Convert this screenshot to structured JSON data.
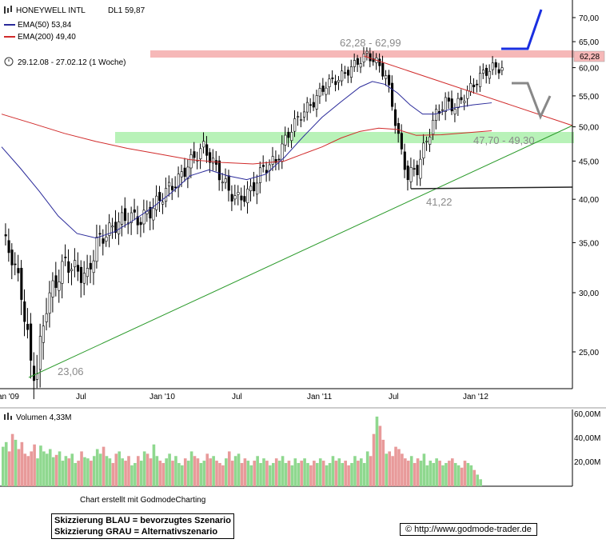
{
  "header": {
    "title": "HONEYWELL INTL",
    "last": "DL1 59,87",
    "ema50": "EMA(50) 53,84",
    "ema200": "EMA(200) 49,40",
    "range": "29.12.08 - 27.02.12 (1 Woche)"
  },
  "annotations": {
    "resistance": "62,28 - 62,99",
    "support": "47,70 - 49,30",
    "low2011": "41,22",
    "low2009": "23,06",
    "price_tag": "62,28"
  },
  "volume": {
    "label": "Volumen 4,33M",
    "ticks": [
      "60,00M",
      "40,00M",
      "20,00M"
    ]
  },
  "footer": {
    "credit": "Chart erstellt mit GodmodeCharting",
    "blue": "Skizzierung BLAU = bevorzugtes Szenario",
    "grey": "Skizzierung GRAU = Alternativszenario",
    "url": "http://www.godmode-trader.de"
  },
  "colors": {
    "up": "#8fd88f",
    "down": "#e89a9a",
    "ema50": "#2a2a9a",
    "ema200": "#d12b2b",
    "zone_red": "#f6b8b8",
    "zone_green": "#b8f2b8",
    "trend_green": "#2a9a2a",
    "blue_scenario": "#1a2fe0",
    "grey_scenario": "#888888"
  },
  "chart_data": {
    "type": "candlestick",
    "title": "HONEYWELL INTL",
    "period": "weekly",
    "x_ticks": [
      "Jan '09",
      "Jul",
      "Jan '10",
      "Jul",
      "Jan '11",
      "Jul",
      "Jan '12"
    ],
    "y_ticks": [
      25,
      30,
      35,
      40,
      45,
      50,
      55,
      60,
      65,
      70
    ],
    "y_tick_labels": [
      "25,00",
      "30,00",
      "35,00",
      "40,00",
      "45,00",
      "50,00",
      "55,00",
      "60,00",
      "65,00",
      "70,00"
    ],
    "ylim": [
      21.5,
      74
    ],
    "close_path": [
      [
        0,
        35.5
      ],
      [
        3,
        33.5
      ],
      [
        6,
        30
      ],
      [
        9,
        24
      ],
      [
        11,
        23.5
      ],
      [
        14,
        29
      ],
      [
        17,
        31
      ],
      [
        20,
        33
      ],
      [
        24,
        32
      ],
      [
        27,
        31.5
      ],
      [
        30,
        35
      ],
      [
        33,
        36
      ],
      [
        36,
        37
      ],
      [
        40,
        38
      ],
      [
        44,
        37.5
      ],
      [
        48,
        39
      ],
      [
        52,
        41
      ],
      [
        56,
        42.5
      ],
      [
        60,
        45
      ],
      [
        64,
        47
      ],
      [
        68,
        44
      ],
      [
        72,
        41
      ],
      [
        75,
        40
      ],
      [
        79,
        41
      ],
      [
        83,
        44
      ],
      [
        87,
        45
      ],
      [
        91,
        49
      ],
      [
        95,
        52
      ],
      [
        99,
        54
      ],
      [
        103,
        57
      ],
      [
        107,
        58
      ],
      [
        111,
        60
      ],
      [
        114,
        61.5
      ],
      [
        116,
        62.5
      ],
      [
        119,
        61
      ],
      [
        122,
        58.5
      ],
      [
        125,
        51
      ],
      [
        127,
        46
      ],
      [
        129,
        43
      ],
      [
        132,
        44
      ],
      [
        135,
        48
      ],
      [
        138,
        52
      ],
      [
        141,
        54
      ],
      [
        144,
        53
      ],
      [
        147,
        55
      ],
      [
        150,
        57
      ],
      [
        153,
        59
      ],
      [
        156,
        60
      ],
      [
        159,
        59.87
      ]
    ],
    "volume_m": [
      34,
      38,
      30,
      45,
      40,
      32,
      38,
      28,
      26,
      30,
      36,
      24,
      35,
      30,
      28,
      32,
      25,
      27,
      30,
      22,
      26,
      24,
      28,
      20,
      22,
      30,
      25,
      24,
      22,
      26,
      32,
      28,
      34,
      26,
      24,
      20,
      28,
      30,
      24,
      22,
      26,
      18,
      20,
      26,
      22,
      30,
      28,
      24,
      36,
      26,
      22,
      20,
      24,
      28,
      22,
      26,
      20,
      18,
      24,
      22,
      30,
      26,
      24,
      20,
      22,
      28,
      24,
      26,
      22,
      20,
      18,
      24,
      30,
      22,
      26,
      28,
      20,
      24,
      22,
      18,
      22,
      26,
      20,
      24,
      22,
      18,
      20,
      24,
      22,
      26,
      20,
      22,
      18,
      24,
      20,
      22,
      24,
      20,
      18,
      22,
      20,
      24,
      22,
      18,
      20,
      26,
      22,
      24,
      20,
      22,
      18,
      20,
      26,
      22,
      24,
      20,
      30,
      26,
      45,
      60,
      52,
      40,
      28,
      30,
      26,
      34,
      32,
      28,
      24,
      22,
      26,
      20,
      24,
      22,
      28,
      18,
      22,
      20,
      24,
      22,
      18,
      20,
      22,
      24,
      20,
      18,
      16,
      22,
      20,
      18,
      14,
      10,
      6
    ],
    "ema50": [
      [
        0,
        47
      ],
      [
        6,
        44
      ],
      [
        12,
        41
      ],
      [
        18,
        38
      ],
      [
        24,
        36
      ],
      [
        30,
        35.5
      ],
      [
        36,
        36.2
      ],
      [
        42,
        37.5
      ],
      [
        48,
        39
      ],
      [
        54,
        40.8
      ],
      [
        60,
        43
      ],
      [
        66,
        43.8
      ],
      [
        72,
        43
      ],
      [
        78,
        42.5
      ],
      [
        84,
        43.2
      ],
      [
        90,
        45.5
      ],
      [
        96,
        48.5
      ],
      [
        102,
        51.5
      ],
      [
        108,
        54
      ],
      [
        114,
        56.5
      ],
      [
        118,
        57.5
      ],
      [
        122,
        57
      ],
      [
        126,
        55.5
      ],
      [
        130,
        53.5
      ],
      [
        134,
        52
      ],
      [
        138,
        52
      ],
      [
        144,
        53
      ],
      [
        150,
        53.5
      ],
      [
        156,
        53.84
      ]
    ],
    "ema200": [
      [
        0,
        52
      ],
      [
        10,
        50.5
      ],
      [
        20,
        49
      ],
      [
        30,
        47.8
      ],
      [
        40,
        46.8
      ],
      [
        50,
        46
      ],
      [
        60,
        45.2
      ],
      [
        70,
        44.8
      ],
      [
        80,
        44.6
      ],
      [
        90,
        45
      ],
      [
        96,
        46
      ],
      [
        102,
        47
      ],
      [
        108,
        48.3
      ],
      [
        114,
        49.3
      ],
      [
        120,
        49.8
      ],
      [
        126,
        49.6
      ],
      [
        132,
        48.7
      ],
      [
        140,
        48.8
      ],
      [
        148,
        49.1
      ],
      [
        156,
        49.4
      ]
    ],
    "levels": {
      "resistance": [
        62.28,
        62.99
      ],
      "support": [
        47.7,
        49.3
      ],
      "low_2011": 41.22,
      "low_2009": 23.06
    }
  }
}
